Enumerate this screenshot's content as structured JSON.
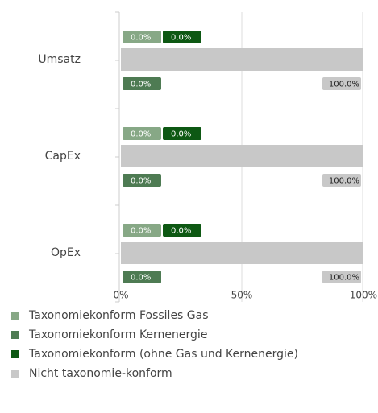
{
  "chart_data": {
    "type": "bar",
    "orientation": "horizontal",
    "categories": [
      "Umsatz",
      "CapEx",
      "OpEx"
    ],
    "series": [
      {
        "name": "Taxonomiekonform Fossiles Gas",
        "color": "#87a886",
        "values": [
          0,
          0,
          0
        ],
        "value_labels": [
          "0.0%",
          "0.0%",
          "0.0%"
        ]
      },
      {
        "name": "Taxonomiekonform Kernenergie",
        "color": "#4e7b53",
        "values": [
          0,
          0,
          0
        ],
        "value_labels": [
          "0.0%",
          "0.0%",
          "0.0%"
        ]
      },
      {
        "name": "Taxonomiekonform (ohne Gas und Kernenergie)",
        "color": "#0d5813",
        "values": [
          0,
          0,
          0
        ],
        "value_labels": [
          "0.0%",
          "0.0%",
          "0.0%"
        ]
      },
      {
        "name": "Nicht taxonomie-konform",
        "color": "#c8c8c8",
        "values": [
          100,
          100,
          100
        ],
        "value_labels": [
          "100.0%",
          "100.0%",
          "100.0%"
        ]
      }
    ],
    "xlim": [
      0,
      100
    ],
    "xticks": [
      {
        "value": 0,
        "label": "0%"
      },
      {
        "value": 50,
        "label": "50%"
      },
      {
        "value": 100,
        "label": "100%"
      }
    ],
    "grid": true,
    "legend": "bottom"
  }
}
